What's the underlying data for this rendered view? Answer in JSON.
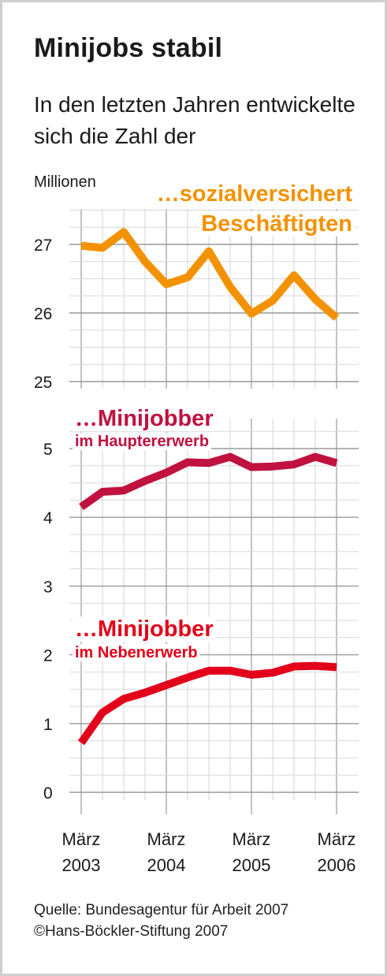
{
  "title": "Minijobs stabil",
  "subtitle": "In den letzten Jahren entwickelte sich die Zahl der",
  "footer": {
    "source": "Quelle: Bundesagentur für Arbeit 2007",
    "copyright": "©Hans-Böckler-Stiftung 2007"
  },
  "chart_data": {
    "type": "line",
    "unit_label": "Millionen",
    "x_tick_labels": [
      {
        "month": "März",
        "year": "2003",
        "index": 0
      },
      {
        "month": "März",
        "year": "2004",
        "index": 4
      },
      {
        "month": "März",
        "year": "2005",
        "index": 8
      },
      {
        "month": "März",
        "year": "2006",
        "index": 12
      }
    ],
    "upper_panel": {
      "ylim": [
        25,
        27.5
      ],
      "y_ticks": [
        "27",
        "26",
        "25"
      ],
      "series": [
        {
          "name_line1": "…sozialversichert",
          "name_line2": "Beschäftigten",
          "color": "#F39200",
          "values": [
            26.98,
            26.95,
            27.18,
            26.75,
            26.42,
            26.52,
            26.9,
            26.38,
            25.99,
            26.18,
            26.55,
            26.2,
            25.93
          ]
        }
      ]
    },
    "lower_panel": {
      "ylim": [
        0,
        5.5
      ],
      "y_ticks": [
        "5",
        "4",
        "3",
        "2",
        "1",
        "0"
      ],
      "series": [
        {
          "name_line1": "…Minijobber",
          "name_line2": "im Hauptererwerb",
          "color": "#C0113F",
          "values": [
            4.15,
            4.37,
            4.39,
            4.53,
            4.65,
            4.8,
            4.79,
            4.88,
            4.73,
            4.74,
            4.77,
            4.88,
            4.79
          ]
        },
        {
          "name_line1": "…Minijobber",
          "name_line2": "im Nebenerwerb",
          "color": "#E2001A",
          "values": [
            0.72,
            1.16,
            1.36,
            1.45,
            1.56,
            1.67,
            1.77,
            1.77,
            1.71,
            1.74,
            1.83,
            1.84,
            1.82
          ]
        }
      ]
    },
    "grid": true,
    "n_points": 13
  }
}
